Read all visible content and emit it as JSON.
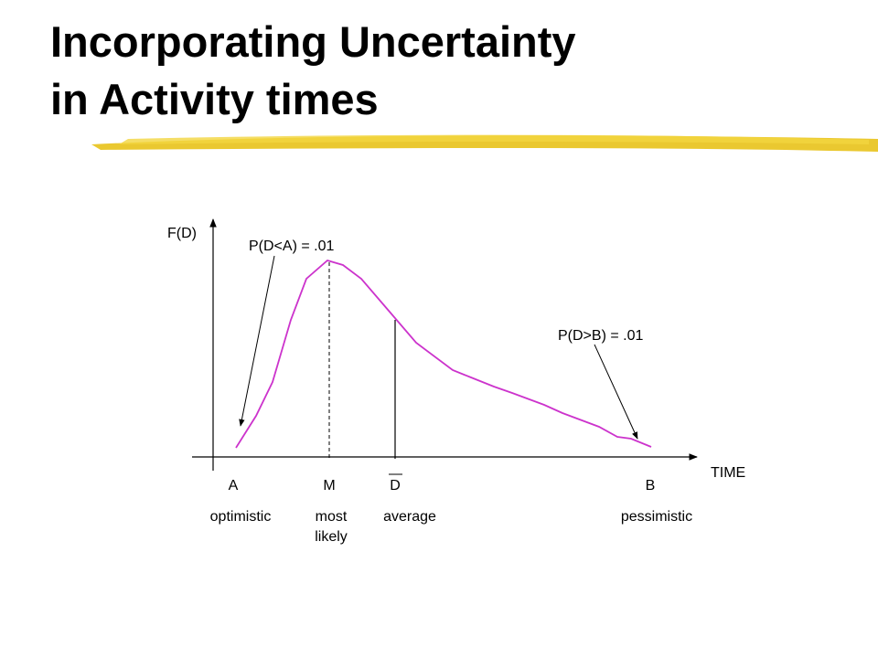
{
  "title": {
    "lines": [
      "Incorporating Uncertainty",
      "in Activity times"
    ]
  },
  "axes": {
    "y_label": "F(D)",
    "x_label": "TIME"
  },
  "annotations": [
    "P(D<A) = .01",
    "P(D>B) = .01"
  ],
  "points": [
    {
      "letter": "A",
      "description": [
        "optimistic"
      ]
    },
    {
      "letter": "M",
      "description": [
        "most",
        "likely"
      ]
    },
    {
      "letter": "D",
      "description": [
        "average"
      ]
    },
    {
      "letter": "B",
      "description": [
        "pessimistic"
      ]
    }
  ]
}
